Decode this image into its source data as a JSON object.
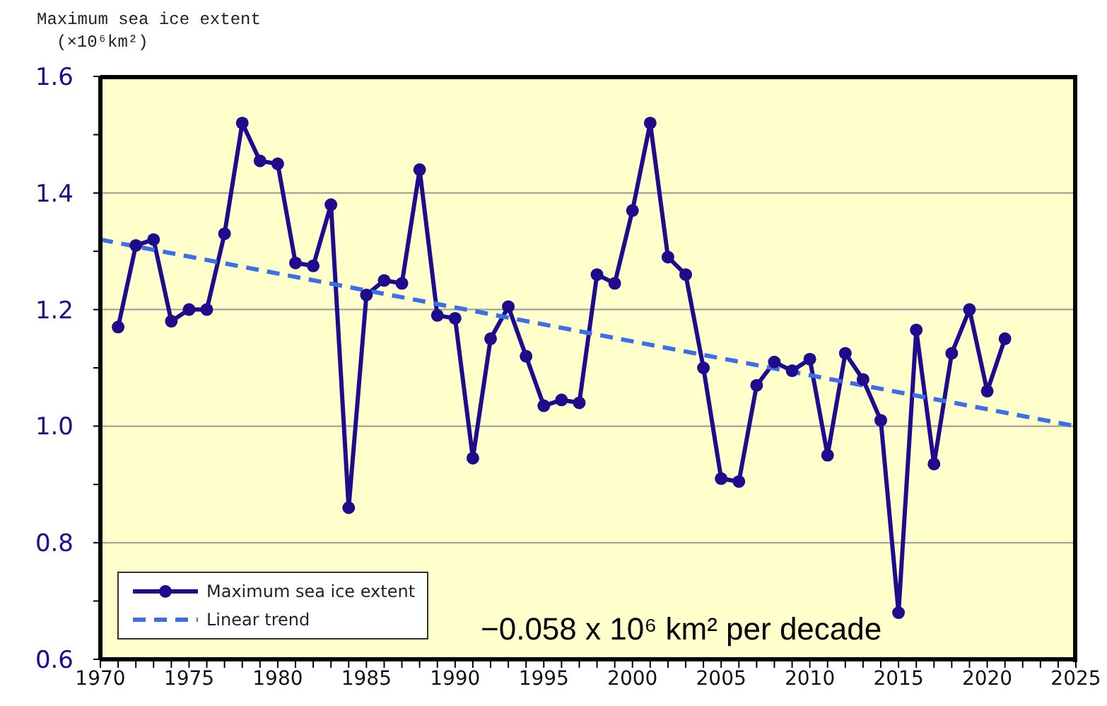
{
  "chart_data": {
    "type": "line",
    "ylabel": "Maximum sea ice extent\n(×10⁶km²)",
    "x": [
      1971,
      1972,
      1973,
      1974,
      1975,
      1976,
      1977,
      1978,
      1979,
      1980,
      1981,
      1982,
      1983,
      1984,
      1985,
      1986,
      1987,
      1988,
      1989,
      1990,
      1991,
      1992,
      1993,
      1994,
      1995,
      1996,
      1997,
      1998,
      1999,
      2000,
      2001,
      2002,
      2003,
      2004,
      2005,
      2006,
      2007,
      2008,
      2009,
      2010,
      2011,
      2012,
      2013,
      2014,
      2015,
      2016,
      2017,
      2018,
      2019,
      2020,
      2021
    ],
    "series": [
      {
        "name": "Maximum sea ice extent",
        "color": "#1e0c8c",
        "marker": "circle",
        "line_style": "solid",
        "values": [
          1.17,
          1.31,
          1.32,
          1.18,
          1.2,
          1.2,
          1.33,
          1.52,
          1.455,
          1.45,
          1.28,
          1.275,
          1.38,
          0.86,
          1.225,
          1.25,
          1.245,
          1.44,
          1.19,
          1.185,
          0.945,
          1.15,
          1.205,
          1.12,
          1.035,
          1.045,
          1.04,
          1.26,
          1.245,
          1.37,
          1.52,
          1.29,
          1.26,
          1.1,
          0.91,
          0.905,
          1.07,
          1.11,
          1.095,
          1.115,
          0.95,
          1.125,
          1.08,
          1.01,
          0.68,
          1.165,
          0.935,
          1.125,
          1.2,
          1.06,
          1.15
        ]
      },
      {
        "name": "Linear trend",
        "type": "line",
        "color": "#3b6fe6",
        "marker": "none",
        "line_style": "dashed",
        "x": [
          1970,
          2025
        ],
        "values": [
          1.32,
          1.0
        ]
      }
    ],
    "xlim": [
      1970,
      2025
    ],
    "xticks": [
      1970,
      {
        "value": 1971,
        "label": null
      },
      {
        "value": 1972,
        "label": null
      },
      {
        "value": 1973,
        "label": null
      },
      {
        "value": 1974,
        "label": null
      },
      1975,
      {
        "value": 1976,
        "label": null
      },
      {
        "value": 1977,
        "label": null
      },
      {
        "value": 1978,
        "label": null
      },
      {
        "value": 1979,
        "label": null
      },
      1980,
      {
        "value": 1981,
        "label": null
      },
      {
        "value": 1982,
        "label": null
      },
      {
        "value": 1983,
        "label": null
      },
      {
        "value": 1984,
        "label": null
      },
      1985,
      {
        "value": 1986,
        "label": null
      },
      {
        "value": 1987,
        "label": null
      },
      {
        "value": 1988,
        "label": null
      },
      {
        "value": 1989,
        "label": null
      },
      1990,
      {
        "value": 1991,
        "label": null
      },
      {
        "value": 1992,
        "label": null
      },
      {
        "value": 1993,
        "label": null
      },
      {
        "value": 1994,
        "label": null
      },
      1995,
      {
        "value": 1996,
        "label": null
      },
      {
        "value": 1997,
        "label": null
      },
      {
        "value": 1998,
        "label": null
      },
      {
        "value": 1999,
        "label": null
      },
      2000,
      {
        "value": 2001,
        "label": null
      },
      {
        "value": 2002,
        "label": null
      },
      {
        "value": 2003,
        "label": null
      },
      {
        "value": 2004,
        "label": null
      },
      2005,
      {
        "value": 2006,
        "label": null
      },
      {
        "value": 2007,
        "label": null
      },
      {
        "value": 2008,
        "label": null
      },
      {
        "value": 2009,
        "label": null
      },
      2010,
      {
        "value": 2011,
        "label": null
      },
      {
        "value": 2012,
        "label": null
      },
      {
        "value": 2013,
        "label": null
      },
      {
        "value": 2014,
        "label": null
      },
      2015,
      {
        "value": 2016,
        "label": null
      },
      {
        "value": 2017,
        "label": null
      },
      {
        "value": 2018,
        "label": null
      },
      {
        "value": 2019,
        "label": null
      },
      2020,
      {
        "value": 2021,
        "label": null
      },
      {
        "value": 2022,
        "label": null
      },
      {
        "value": 2023,
        "label": null
      },
      {
        "value": 2024,
        "label": null
      },
      2025
    ],
    "ylim": [
      0.6,
      1.6
    ],
    "yticks": [
      {
        "value": 0.6,
        "label": "0.6"
      },
      {
        "value": 0.7,
        "label": null
      },
      {
        "value": 0.8,
        "label": "0.8"
      },
      {
        "value": 0.9,
        "label": null
      },
      {
        "value": 1.0,
        "label": "1.0"
      },
      {
        "value": 1.1,
        "label": null
      },
      {
        "value": 1.2,
        "label": "1.2"
      },
      {
        "value": 1.3,
        "label": null
      },
      {
        "value": 1.4,
        "label": "1.4"
      },
      {
        "value": 1.5,
        "label": null
      },
      {
        "value": 1.6,
        "label": "1.6"
      }
    ],
    "grid": "y",
    "legend": "bottom left",
    "annotations": [
      "−0.058 x 10⁶ km² per decade"
    ]
  }
}
